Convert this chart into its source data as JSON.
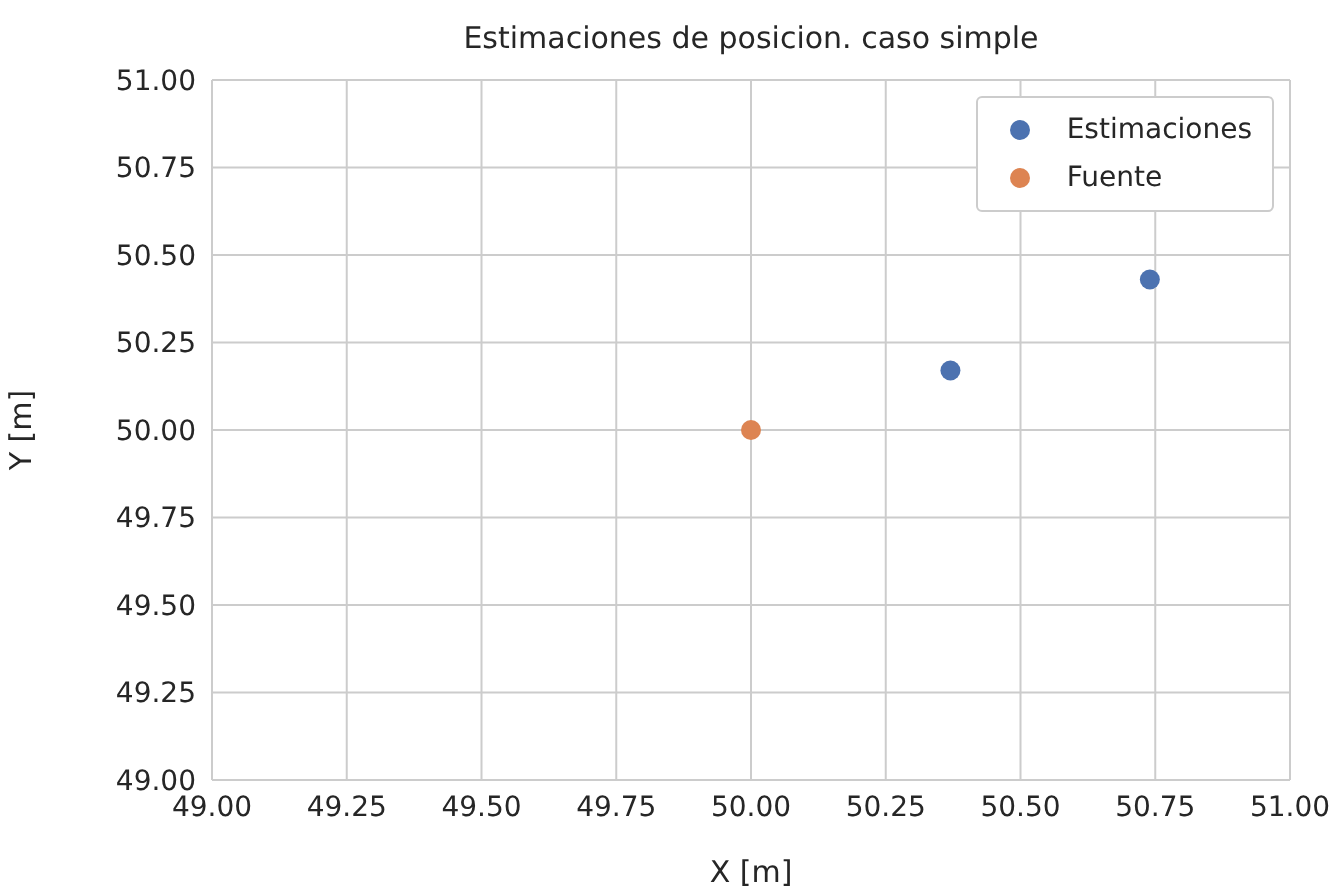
{
  "chart_data": {
    "type": "scatter",
    "title": "Estimaciones de posicion. caso simple",
    "xlabel": "X [m]",
    "ylabel": "Y [m]",
    "series": [
      {
        "name": "Estimaciones",
        "color": "#4c72b0",
        "x": [
          50.37,
          50.74
        ],
        "values": [
          50.17,
          50.43
        ]
      },
      {
        "name": "Fuente",
        "color": "#dd8452",
        "x": [
          50.0
        ],
        "values": [
          50.0
        ]
      }
    ],
    "xlim": [
      49,
      51
    ],
    "xticks": [
      {
        "value": 49,
        "label": "49.00"
      },
      {
        "value": 49.25,
        "label": "49.25"
      },
      {
        "value": 49.5,
        "label": "49.50"
      },
      {
        "value": 49.75,
        "label": "49.75"
      },
      {
        "value": 50,
        "label": "50.00"
      },
      {
        "value": 50.25,
        "label": "50.25"
      },
      {
        "value": 50.5,
        "label": "50.50"
      },
      {
        "value": 50.75,
        "label": "50.75"
      },
      {
        "value": 51,
        "label": "51.00"
      }
    ],
    "ylim": [
      49,
      51
    ],
    "yticks": [
      {
        "value": 49,
        "label": "49.00"
      },
      {
        "value": 49.25,
        "label": "49.25"
      },
      {
        "value": 49.5,
        "label": "49.50"
      },
      {
        "value": 49.75,
        "label": "49.75"
      },
      {
        "value": 50,
        "label": "50.00"
      },
      {
        "value": 50.25,
        "label": "50.25"
      },
      {
        "value": 50.5,
        "label": "50.50"
      },
      {
        "value": 50.75,
        "label": "50.75"
      },
      {
        "value": 51,
        "label": "51.00"
      }
    ],
    "grid": true,
    "legend": "top right",
    "marker": "circle"
  }
}
